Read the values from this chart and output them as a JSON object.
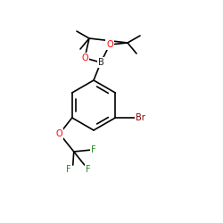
{
  "background_color": "#ffffff",
  "bond_color": "#000000",
  "atom_colors": {
    "O": "#ff0000",
    "B": "#1a1a1a",
    "Br": "#8b0000",
    "F": "#228b22",
    "C": "#000000"
  },
  "font_size_B": 7,
  "font_size_O": 7,
  "font_size_Br": 7,
  "font_size_F": 7,
  "fig_size": [
    2.5,
    2.5
  ],
  "dpi": 100,
  "lw": 1.2
}
